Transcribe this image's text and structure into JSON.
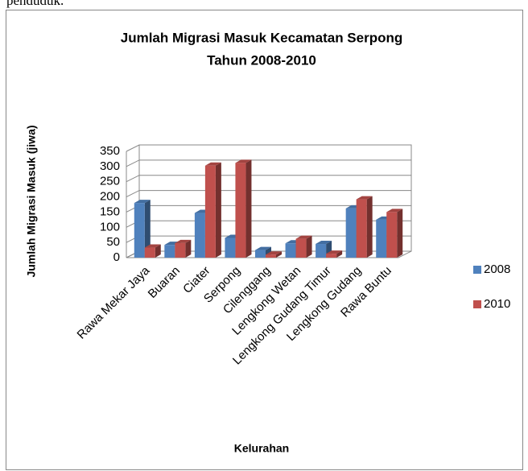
{
  "page_text": "penduduk.",
  "chart_data": {
    "type": "bar",
    "title": [
      "Jumlah Migrasi Masuk Kecamatan Serpong",
      "Tahun 2008-2010"
    ],
    "y_label": "Jumlah Migrasi Masuk (jiwa)",
    "x_label": "Kelurahan",
    "categories": [
      "Rawa Mekar Jaya",
      "Buaran",
      "Ciater",
      "Serpong",
      "Cilenggang",
      "Lengkong Wetan",
      "Lengkong Gudang Timur",
      "Lengkong Gudang",
      "Rawa Buntu"
    ],
    "series": [
      {
        "name": "2008",
        "color": "#4f81bd",
        "values": [
          180,
          42,
          147,
          65,
          25,
          47,
          45,
          162,
          125
        ]
      },
      {
        "name": "2010",
        "color": "#c0504d",
        "values": [
          33,
          48,
          303,
          312,
          10,
          62,
          13,
          192,
          150
        ]
      }
    ],
    "ylim": [
      0,
      350
    ],
    "yticks": [
      0,
      50,
      100,
      150,
      200,
      250,
      300,
      350
    ],
    "grid": true,
    "legend": "right"
  }
}
